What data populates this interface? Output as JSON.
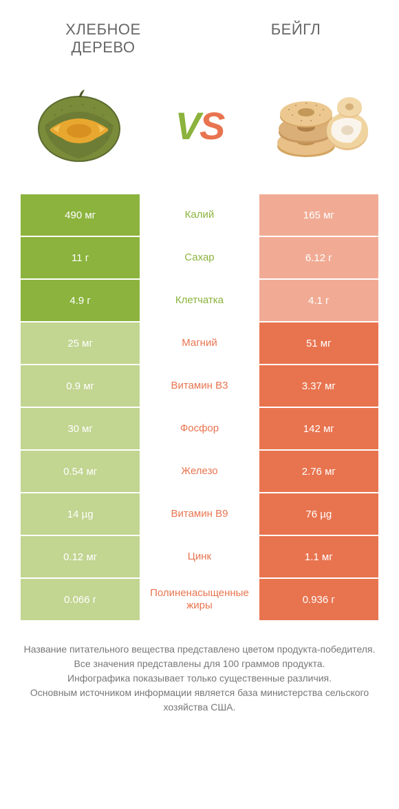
{
  "titles": {
    "left": "ХЛЕБНОЕ ДЕРЕВО",
    "right": "БЕЙГЛ"
  },
  "vs": {
    "letter1": "V",
    "letter2": "S"
  },
  "colors": {
    "left_win": "#8bb33d",
    "left_lose": "#c2d591",
    "right_win": "#e8744f",
    "right_lose": "#f1ab94",
    "mid_left": "#8bb33d",
    "mid_right": "#e8744f",
    "background": "#ffffff",
    "text": "#555555"
  },
  "rows": [
    {
      "left": "490 мг",
      "mid": "Калий",
      "right": "165 мг",
      "winner": "left"
    },
    {
      "left": "11 г",
      "mid": "Сахар",
      "right": "6.12 г",
      "winner": "left"
    },
    {
      "left": "4.9 г",
      "mid": "Клетчатка",
      "right": "4.1 г",
      "winner": "left"
    },
    {
      "left": "25 мг",
      "mid": "Магний",
      "right": "51 мг",
      "winner": "right"
    },
    {
      "left": "0.9 мг",
      "mid": "Витамин B3",
      "right": "3.37 мг",
      "winner": "right"
    },
    {
      "left": "30 мг",
      "mid": "Фосфор",
      "right": "142 мг",
      "winner": "right"
    },
    {
      "left": "0.54 мг",
      "mid": "Железо",
      "right": "2.76 мг",
      "winner": "right"
    },
    {
      "left": "14 µg",
      "mid": "Витамин B9",
      "right": "76 µg",
      "winner": "right"
    },
    {
      "left": "0.12 мг",
      "mid": "Цинк",
      "right": "1.1 мг",
      "winner": "right"
    },
    {
      "left": "0.066 г",
      "mid": "Полиненасыщенные жиры",
      "right": "0.936 г",
      "winner": "right"
    }
  ],
  "footer": {
    "line1": "Название питательного вещества представлено цветом продукта-победителя.",
    "line2": "Все значения представлены для 100 граммов продукта.",
    "line3": "Инфографика показывает только существенные различия.",
    "line4": "Основным источником информации является база министерства сельского хозяйства США."
  }
}
